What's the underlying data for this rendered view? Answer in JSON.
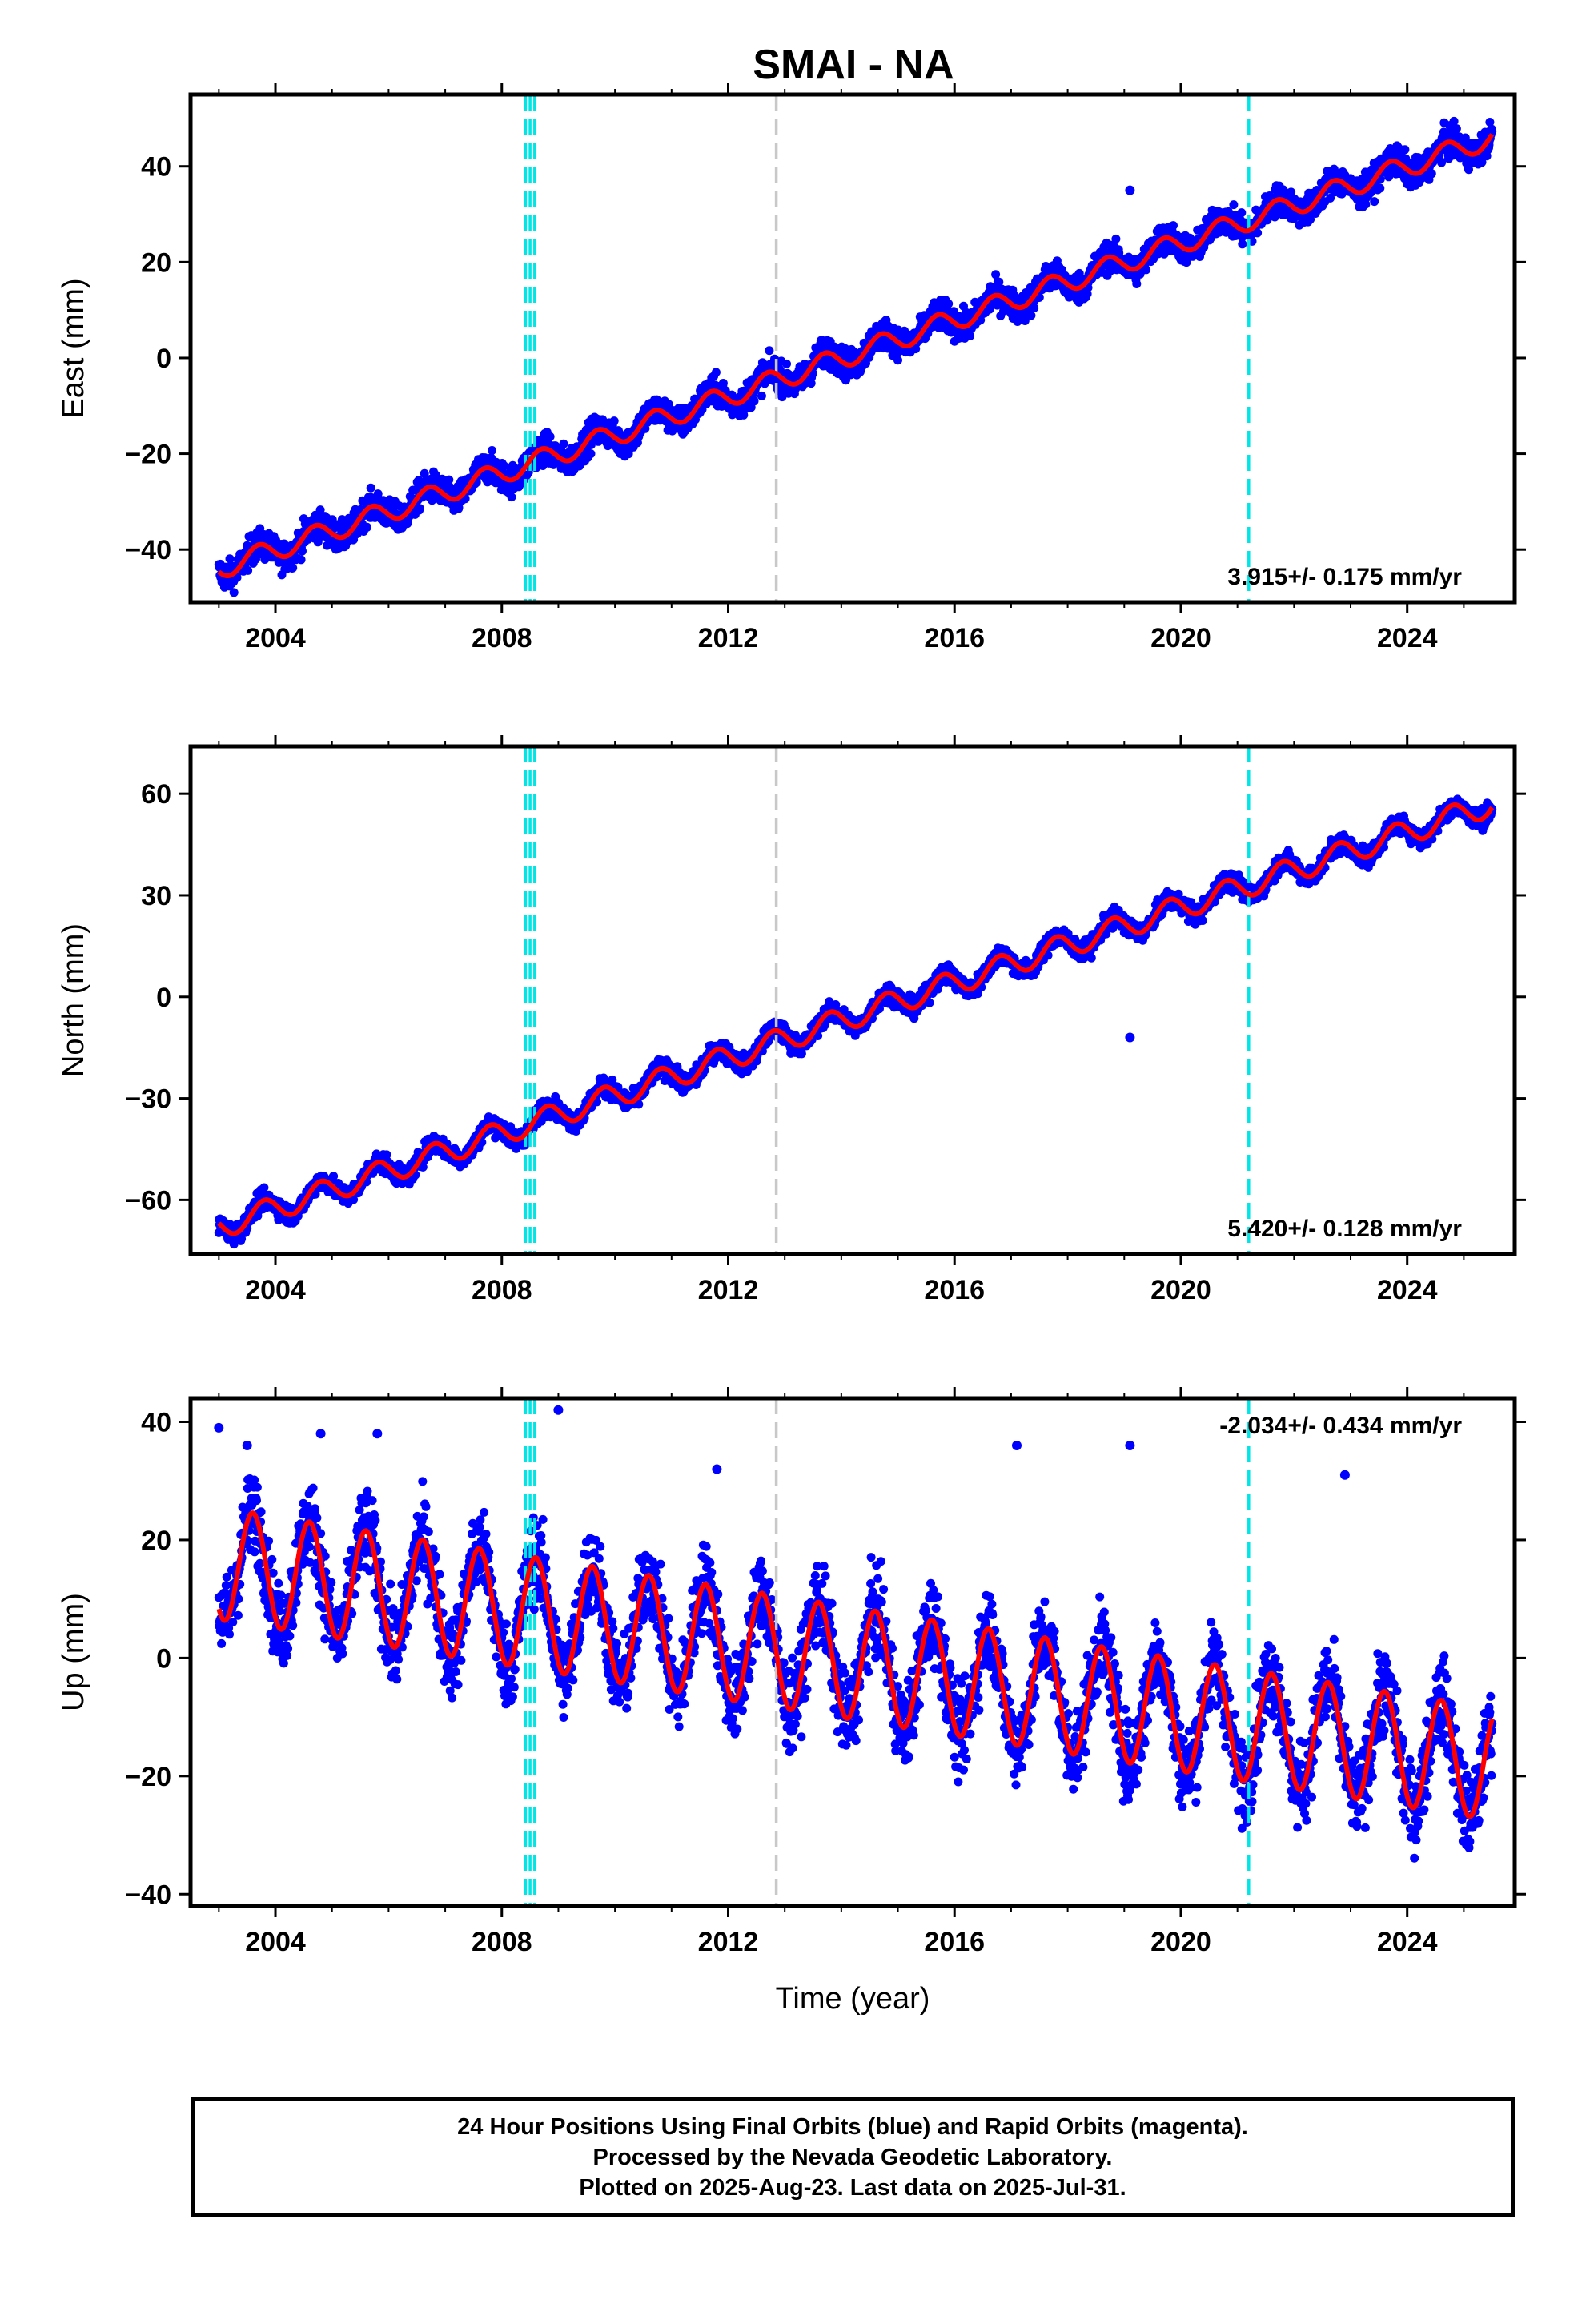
{
  "title": "SMAI - NA",
  "footer": {
    "line1": "24 Hour Positions Using Final Orbits (blue) and Rapid Orbits (magenta).",
    "line2": "Processed by the Nevada Geodetic Laboratory.",
    "line3": "Plotted on 2025-Aug-23. Last data on 2025-Jul-31."
  },
  "colors": {
    "data_points": "#0000ff",
    "model_fit": "#ff0000",
    "equipment_change": "#00e5e5",
    "other_event": "#c8c8c8"
  },
  "chart_data": [
    {
      "type": "scatter",
      "ylabel": "East (mm)",
      "xlabel": "",
      "xlim": [
        2002.5,
        2025.9
      ],
      "ylim": [
        -51,
        55
      ],
      "xticks": [
        "2004",
        "2008",
        "2012",
        "2016",
        "2020",
        "2024"
      ],
      "yticks": [
        "−40",
        "−20",
        "0",
        "20",
        "40"
      ],
      "rate_text": "3.915+/- 0.175 mm/yr",
      "trend": {
        "t0": 2003.0,
        "y0": -44,
        "t1": 2025.5,
        "y1": 46
      },
      "seasonal": {
        "amplitude": 2.2,
        "phase_year": 0.45
      },
      "noise": 2.2,
      "outliers": [
        {
          "x": 2019.1,
          "y": 35
        }
      ],
      "series": [
        {
          "values_description": "daily positions",
          "x": [
            2003.0,
            2005.0,
            2008.0,
            2012.0,
            2016.0,
            2020.0,
            2024.0,
            2025.5
          ],
          "y": [
            -41,
            -38,
            -27,
            -11,
            6,
            24,
            43,
            49
          ]
        },
        {
          "values_description": "model fit",
          "x": [
            2003.0,
            2005.0,
            2008.0,
            2012.0,
            2016.0,
            2020.0,
            2024.0,
            2025.5
          ],
          "y": [
            -45,
            -39,
            -27,
            -11,
            6,
            24,
            42,
            47
          ]
        }
      ],
      "vlines": [
        {
          "x": 2008.42,
          "kind": "equipment_change"
        },
        {
          "x": 2008.5,
          "kind": "equipment_change"
        },
        {
          "x": 2008.58,
          "kind": "equipment_change"
        },
        {
          "x": 2012.85,
          "kind": "other_event"
        },
        {
          "x": 2021.2,
          "kind": "equipment_change"
        }
      ]
    },
    {
      "type": "scatter",
      "ylabel": "North (mm)",
      "xlabel": "",
      "xlim": [
        2002.5,
        2025.9
      ],
      "ylim": [
        -76,
        74
      ],
      "xticks": [
        "2004",
        "2008",
        "2012",
        "2016",
        "2020",
        "2024"
      ],
      "yticks": [
        "−60",
        "−30",
        "0",
        "30",
        "60"
      ],
      "rate_text": "5.420+/- 0.128 mm/yr",
      "trend": {
        "t0": 2003.0,
        "y0": -68,
        "t1": 2025.5,
        "y1": 57
      },
      "seasonal": {
        "amplitude": 3.5,
        "phase_year": 0.55
      },
      "noise": 2.0,
      "outliers": [
        {
          "x": 2019.1,
          "y": -12
        }
      ],
      "series": [
        {
          "values_description": "daily positions",
          "x": [
            2003.0,
            2005.0,
            2008.0,
            2012.0,
            2016.0,
            2020.0,
            2024.0,
            2025.5
          ],
          "y": [
            -67,
            -55,
            -38,
            -15,
            6,
            29,
            50,
            64
          ]
        },
        {
          "values_description": "model fit",
          "x": [
            2003.0,
            2005.0,
            2008.0,
            2012.0,
            2016.0,
            2020.0,
            2024.0,
            2025.5
          ],
          "y": [
            -68,
            -56,
            -38,
            -15,
            6,
            29,
            50,
            63
          ]
        }
      ],
      "vlines": [
        {
          "x": 2008.42,
          "kind": "equipment_change"
        },
        {
          "x": 2008.5,
          "kind": "equipment_change"
        },
        {
          "x": 2008.58,
          "kind": "equipment_change"
        },
        {
          "x": 2012.85,
          "kind": "other_event"
        },
        {
          "x": 2021.2,
          "kind": "equipment_change"
        }
      ]
    },
    {
      "type": "scatter",
      "ylabel": "Up (mm)",
      "xlabel": "Time (year)",
      "xlim": [
        2002.5,
        2025.9
      ],
      "ylim": [
        -42,
        44
      ],
      "xticks": [
        "2004",
        "2008",
        "2012",
        "2016",
        "2020",
        "2024"
      ],
      "yticks": [
        "−40",
        "−20",
        "0",
        "20",
        "40"
      ],
      "rate_text": "-2.034+/- 0.434 mm/yr",
      "trend": {
        "t0": 2003.0,
        "y0": 16,
        "t1": 2025.5,
        "y1": -18
      },
      "seasonal": {
        "amplitude": 9.5,
        "phase_year": 0.35
      },
      "noise": 5.0,
      "outliers": [
        {
          "x": 2003.0,
          "y": 39
        },
        {
          "x": 2003.5,
          "y": 36
        },
        {
          "x": 2004.8,
          "y": 38
        },
        {
          "x": 2005.8,
          "y": 38
        },
        {
          "x": 2009.0,
          "y": 42
        },
        {
          "x": 2011.8,
          "y": 32
        },
        {
          "x": 2017.1,
          "y": 36
        },
        {
          "x": 2019.1,
          "y": 36
        },
        {
          "x": 2022.9,
          "y": 31
        }
      ],
      "series": [
        {
          "values_description": "daily positions",
          "x": [
            2003.0,
            2005.0,
            2008.0,
            2012.0,
            2016.0,
            2020.0,
            2024.0,
            2025.5
          ],
          "y": [
            16,
            13,
            8,
            3,
            -2,
            -8,
            -15,
            -20
          ]
        },
        {
          "values_description": "model fit",
          "x": [
            2003.0,
            2005.0,
            2008.0,
            2012.0,
            2016.0,
            2020.0,
            2024.0,
            2025.5
          ],
          "y": [
            23,
            14,
            8,
            3,
            -2,
            -8,
            -15,
            -16
          ]
        }
      ],
      "vlines": [
        {
          "x": 2008.42,
          "kind": "equipment_change"
        },
        {
          "x": 2008.5,
          "kind": "equipment_change"
        },
        {
          "x": 2008.58,
          "kind": "equipment_change"
        },
        {
          "x": 2012.85,
          "kind": "other_event"
        },
        {
          "x": 2021.2,
          "kind": "equipment_change"
        }
      ]
    }
  ]
}
